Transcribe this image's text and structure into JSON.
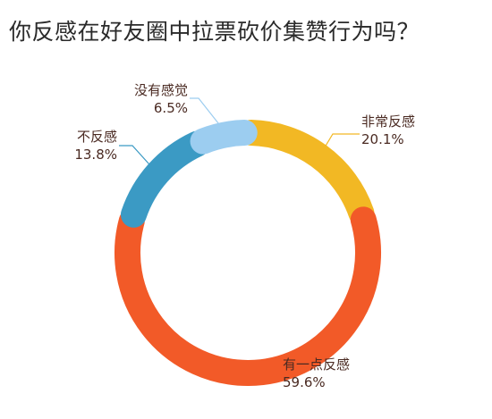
{
  "chart_data": {
    "type": "pie",
    "title": "你反感在好友圈中拉票砍价集赞行为吗？",
    "slices": [
      {
        "label": "非常反感",
        "value": 20.1,
        "value_text": "20.1%",
        "color": "#f2b824"
      },
      {
        "label": "有一点反感",
        "value": 59.6,
        "value_text": "59.6%",
        "color": "#f25a28"
      },
      {
        "label": "不反感",
        "value": 13.8,
        "value_text": "13.8%",
        "color": "#3b9ac4"
      },
      {
        "label": "没有感觉",
        "value": 6.5,
        "value_text": "6.5%",
        "color": "#9ccdf0"
      }
    ]
  }
}
